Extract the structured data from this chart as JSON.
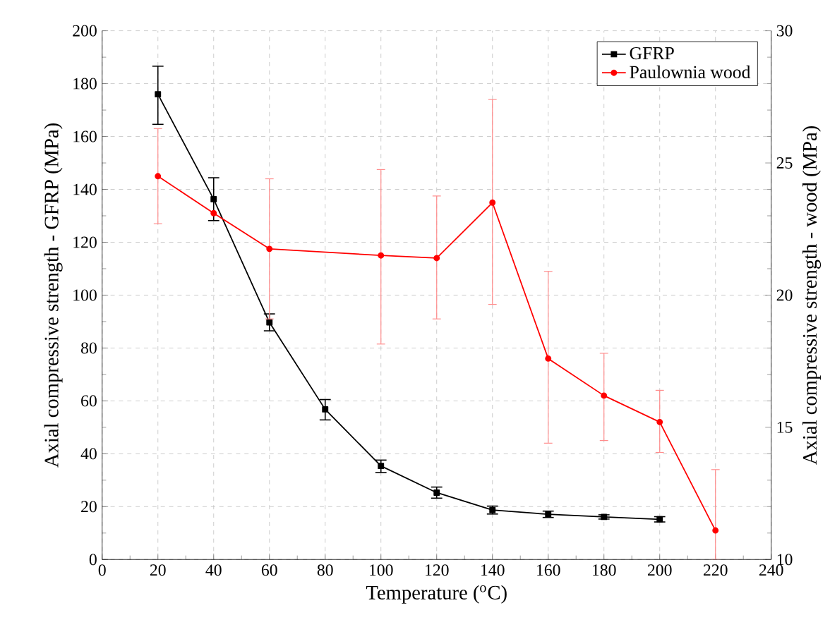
{
  "chart_data": {
    "type": "line",
    "xlabel": "Temperature ($^{o}$C)",
    "ylabel": "Axial compressive strength - GFRP (MPa)",
    "y2label": "Axial compressive strength - wood (MPa)",
    "x": [
      20,
      40,
      60,
      80,
      100,
      120,
      140,
      160,
      180,
      200,
      220
    ],
    "series": [
      {
        "name": "GFRP",
        "color": "#000000",
        "marker": "square",
        "values": [
          176,
          136.3,
          89.7,
          56.8,
          35.4,
          25.3,
          18.7,
          17.1,
          16.1,
          15.2,
          null
        ],
        "errors": [
          [
            164.6,
            186.6
          ],
          [
            128.2,
            144.4
          ],
          [
            86.5,
            92.9
          ],
          [
            52.8,
            60.5
          ],
          [
            32.9,
            37.6
          ],
          [
            23.2,
            27.4
          ],
          [
            17.2,
            20.2
          ],
          [
            15.9,
            18.3
          ],
          [
            15.3,
            16.9
          ],
          [
            14.2,
            16.2
          ],
          null
        ]
      },
      {
        "name": "Paulownia wood",
        "color": "#ff0000",
        "marker": "circle",
        "axis": "y2",
        "values": [
          24.5,
          23.1,
          21.75,
          null,
          21.5,
          21.4,
          23.5,
          17.6,
          16.2,
          15.2,
          11.1
        ],
        "errors": [
          [
            22.7,
            26.3
          ],
          null,
          [
            19.1,
            24.4
          ],
          null,
          [
            18.15,
            24.75
          ],
          [
            19.1,
            23.75
          ],
          [
            19.65,
            27.4
          ],
          [
            14.4,
            20.9
          ],
          [
            14.5,
            17.8
          ],
          [
            14.05,
            16.4
          ],
          [
            10,
            13.4
          ]
        ]
      }
    ],
    "xlim": [
      0,
      240
    ],
    "xticks": [
      0,
      20,
      40,
      60,
      80,
      100,
      120,
      140,
      160,
      180,
      200,
      220,
      240
    ],
    "ylim": [
      0,
      200
    ],
    "yticks": [
      0,
      20,
      40,
      60,
      80,
      100,
      120,
      140,
      160,
      180,
      200
    ],
    "y2lim": [
      10,
      30
    ],
    "y2ticks": [
      10,
      15,
      20,
      25,
      30
    ],
    "grid": true,
    "legend": "top right"
  }
}
